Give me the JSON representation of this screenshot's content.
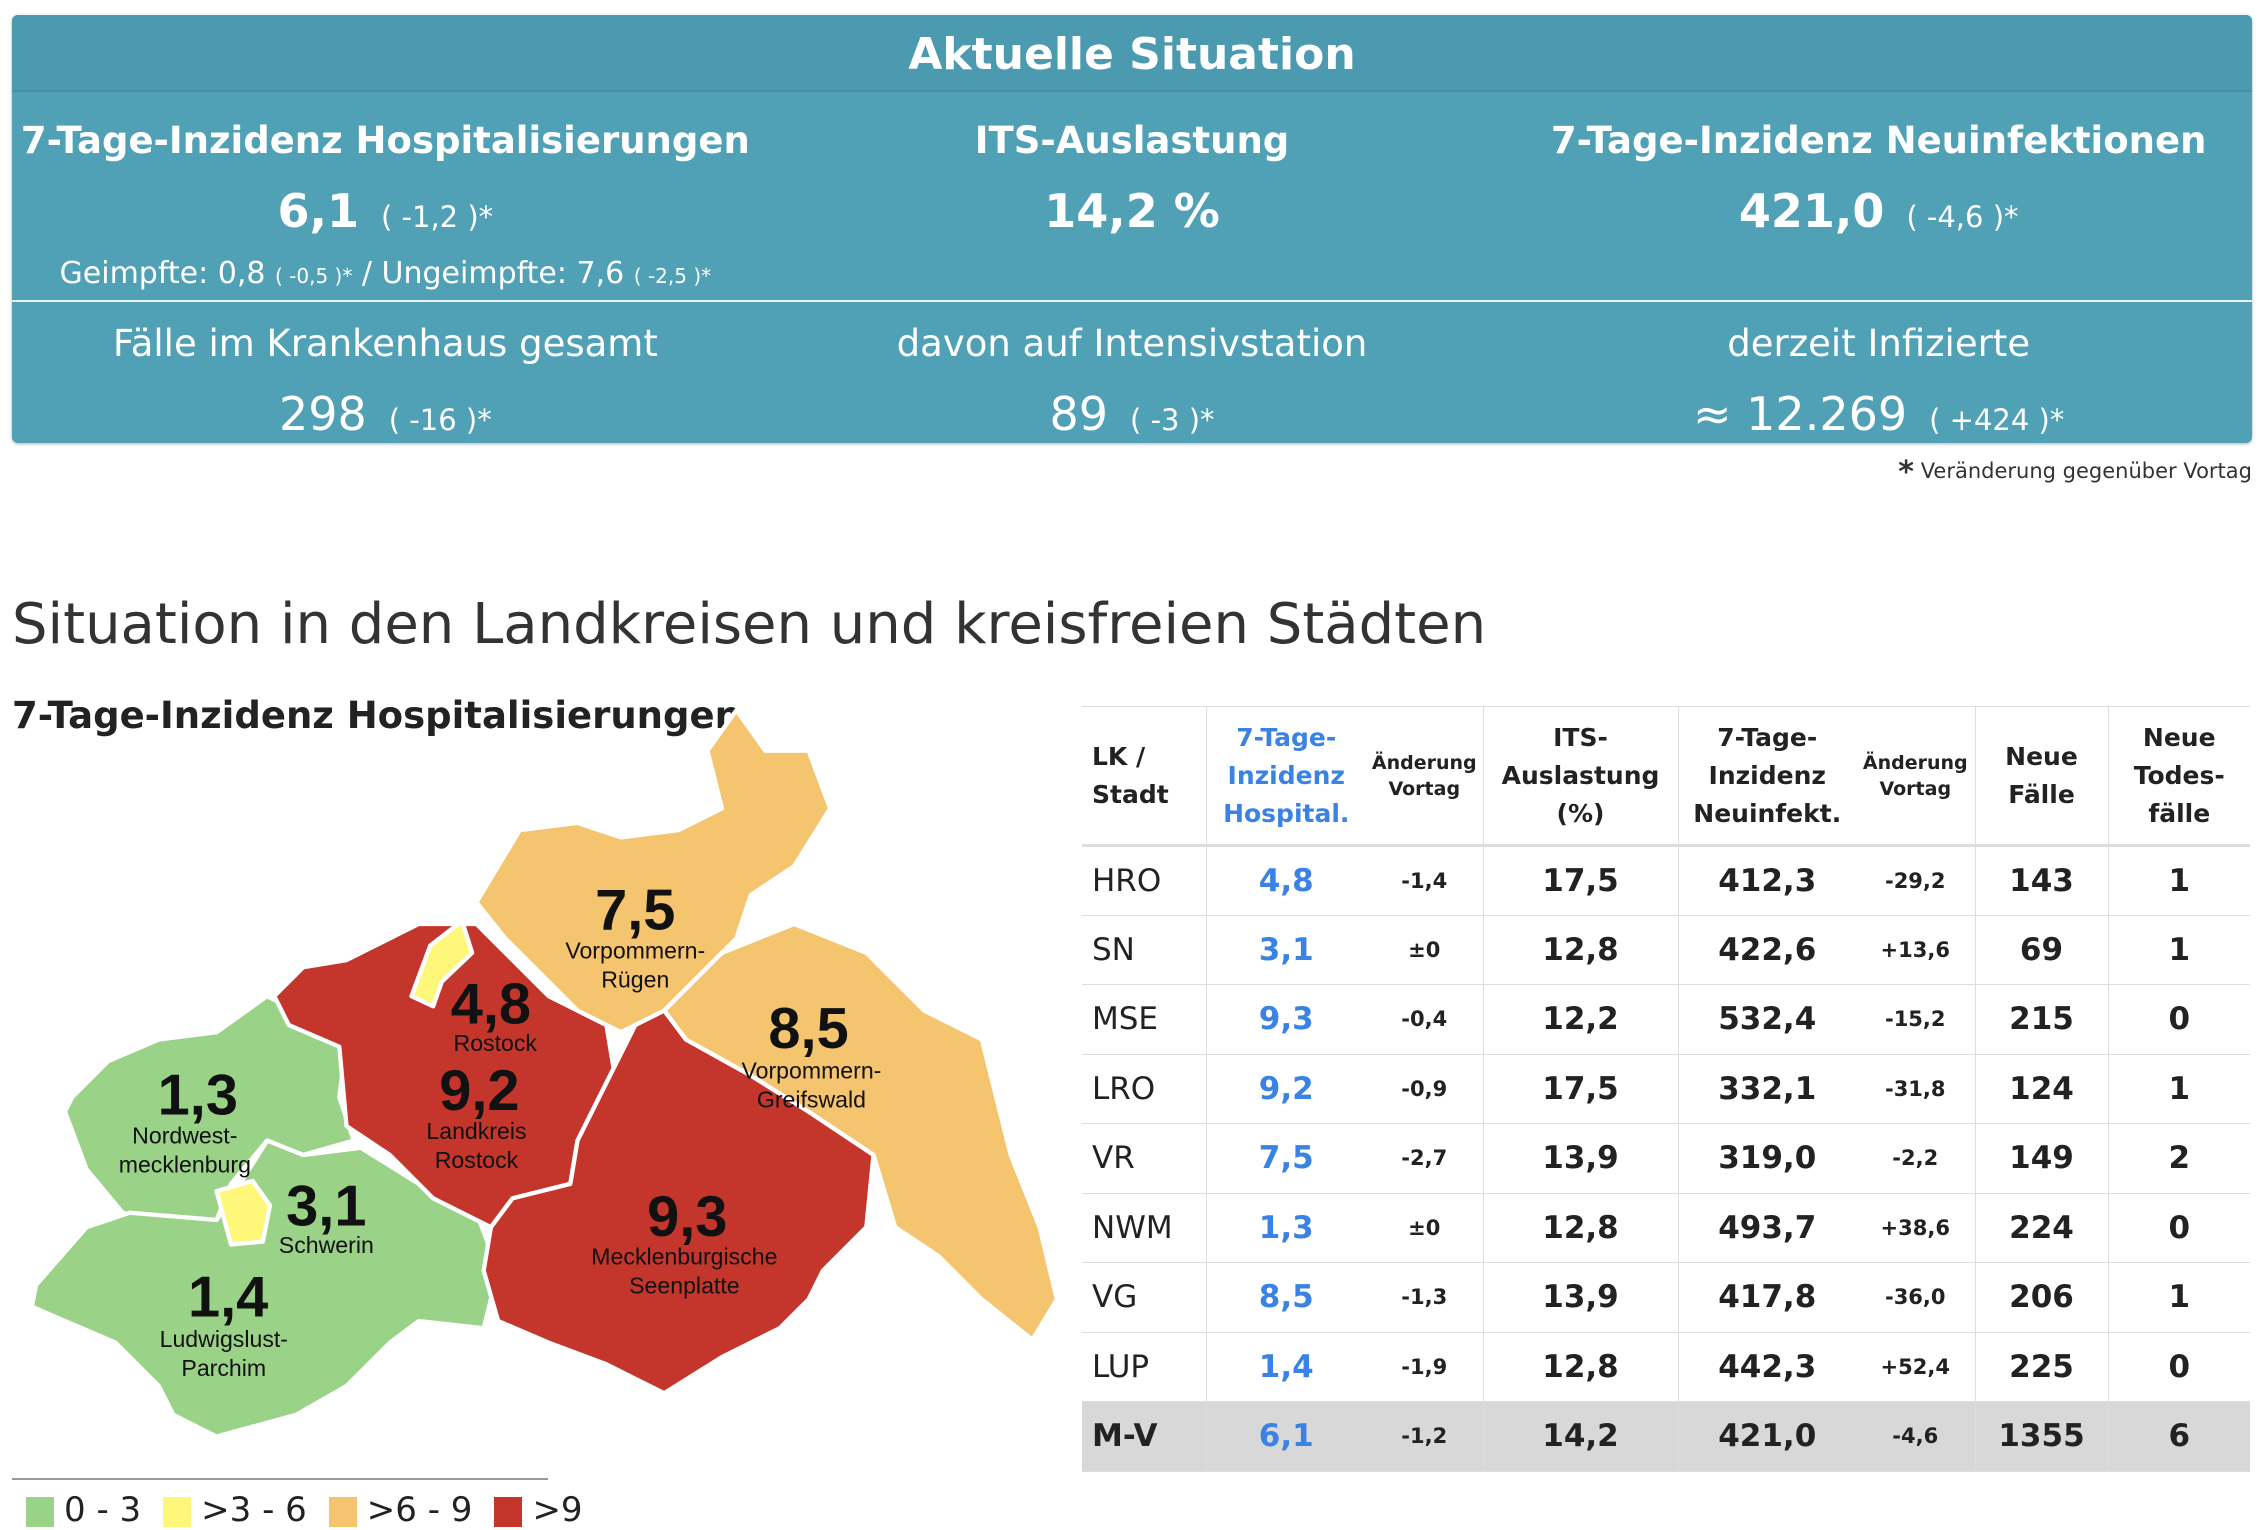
{
  "panel": {
    "title": "Aktuelle Situation",
    "top": [
      {
        "label": "7-Tage-Inzidenz Hospitalisierungen",
        "value": "6,1",
        "change": "( -1,2 )*"
      },
      {
        "label": "ITS-Auslastung",
        "value": "14,2 %",
        "change": ""
      },
      {
        "label": "7-Tage-Inzidenz Neuinfektionen",
        "value": "421,0",
        "change": "( -4,6 )*"
      }
    ],
    "vaccinated": {
      "label1": "Geimpfte: 0,8",
      "change1": "( -0,5 )*",
      "sep": "/",
      "label2": "Ungeimpfte: 7,6",
      "change2": "( -2,5 )*"
    },
    "bottom": [
      {
        "label": "Fälle im Krankenhaus gesamt",
        "value": "298",
        "change": "( -16 )*"
      },
      {
        "label": "davon auf Intensivstation",
        "value": "89",
        "change": "( -3 )*"
      },
      {
        "label": "derzeit Infizierte",
        "value": "≈ 12.269",
        "change": "( +424 )*"
      }
    ]
  },
  "footnote": {
    "star": "*",
    "text": "Veränderung gegenüber Vortag"
  },
  "section_title": "Situation in den Landkreisen und kreisfreien Städten",
  "map": {
    "title": "7-Tage-Inzidenz Hospitalisierungen",
    "colors": {
      "low": "#9ad287",
      "mid": "#fff77a",
      "high": "#f5c46e",
      "vhigh": "#c4352c"
    },
    "regions": [
      {
        "id": "nwm",
        "value": "1,3",
        "name1": "Nordwest-",
        "name2": "mecklenburg"
      },
      {
        "id": "sn",
        "value": "3,1",
        "name1": "Schwerin",
        "name2": ""
      },
      {
        "id": "lup",
        "value": "1,4",
        "name1": "Ludwigslust-",
        "name2": "Parchim"
      },
      {
        "id": "hro",
        "value": "4,8",
        "name1": "Rostock",
        "name2": ""
      },
      {
        "id": "lro",
        "value": "9,2",
        "name1": "Landkreis",
        "name2": "Rostock"
      },
      {
        "id": "vr",
        "value": "7,5",
        "name1": "Vorpommern-",
        "name2": "Rügen"
      },
      {
        "id": "vg",
        "value": "8,5",
        "name1": "Vorpommern-",
        "name2": "Greifswald"
      },
      {
        "id": "mse",
        "value": "9,3",
        "name1": "Mecklenburgische",
        "name2": "Seenplatte"
      }
    ],
    "legend": [
      "0 - 3",
      ">3 - 6",
      ">6 - 9",
      ">9"
    ]
  },
  "table": {
    "headers": {
      "lk": [
        "LK /",
        "Stadt"
      ],
      "hosp": [
        "7-Tage-",
        "Inzidenz",
        "Hospital."
      ],
      "chg1": [
        "Änderung",
        "Vortag"
      ],
      "its": [
        "ITS-",
        "Auslastung",
        "(%)"
      ],
      "inf": [
        "7-Tage-",
        "Inzidenz",
        "Neuinfekt."
      ],
      "chg2": [
        "Änderung",
        "Vortag"
      ],
      "cases": [
        "Neue",
        "Fälle"
      ],
      "deaths": [
        "Neue",
        "Todes-",
        "fälle"
      ]
    },
    "rows": [
      [
        "HRO",
        "4,8",
        "-1,4",
        "17,5",
        "412,3",
        "-29,2",
        "143",
        "1"
      ],
      [
        "SN",
        "3,1",
        "±0",
        "12,8",
        "422,6",
        "+13,6",
        "69",
        "1"
      ],
      [
        "MSE",
        "9,3",
        "-0,4",
        "12,2",
        "532,4",
        "-15,2",
        "215",
        "0"
      ],
      [
        "LRO",
        "9,2",
        "-0,9",
        "17,5",
        "332,1",
        "-31,8",
        "124",
        "1"
      ],
      [
        "VR",
        "7,5",
        "-2,7",
        "13,9",
        "319,0",
        "-2,2",
        "149",
        "2"
      ],
      [
        "NWM",
        "1,3",
        "±0",
        "12,8",
        "493,7",
        "+38,6",
        "224",
        "0"
      ],
      [
        "VG",
        "8,5",
        "-1,3",
        "13,9",
        "417,8",
        "-36,0",
        "206",
        "1"
      ],
      [
        "LUP",
        "1,4",
        "-1,9",
        "12,8",
        "442,3",
        "+52,4",
        "225",
        "0"
      ],
      [
        "M-V",
        "6,1",
        "-1,2",
        "14,2",
        "421,0",
        "-4,6",
        "1355",
        "6"
      ]
    ]
  }
}
